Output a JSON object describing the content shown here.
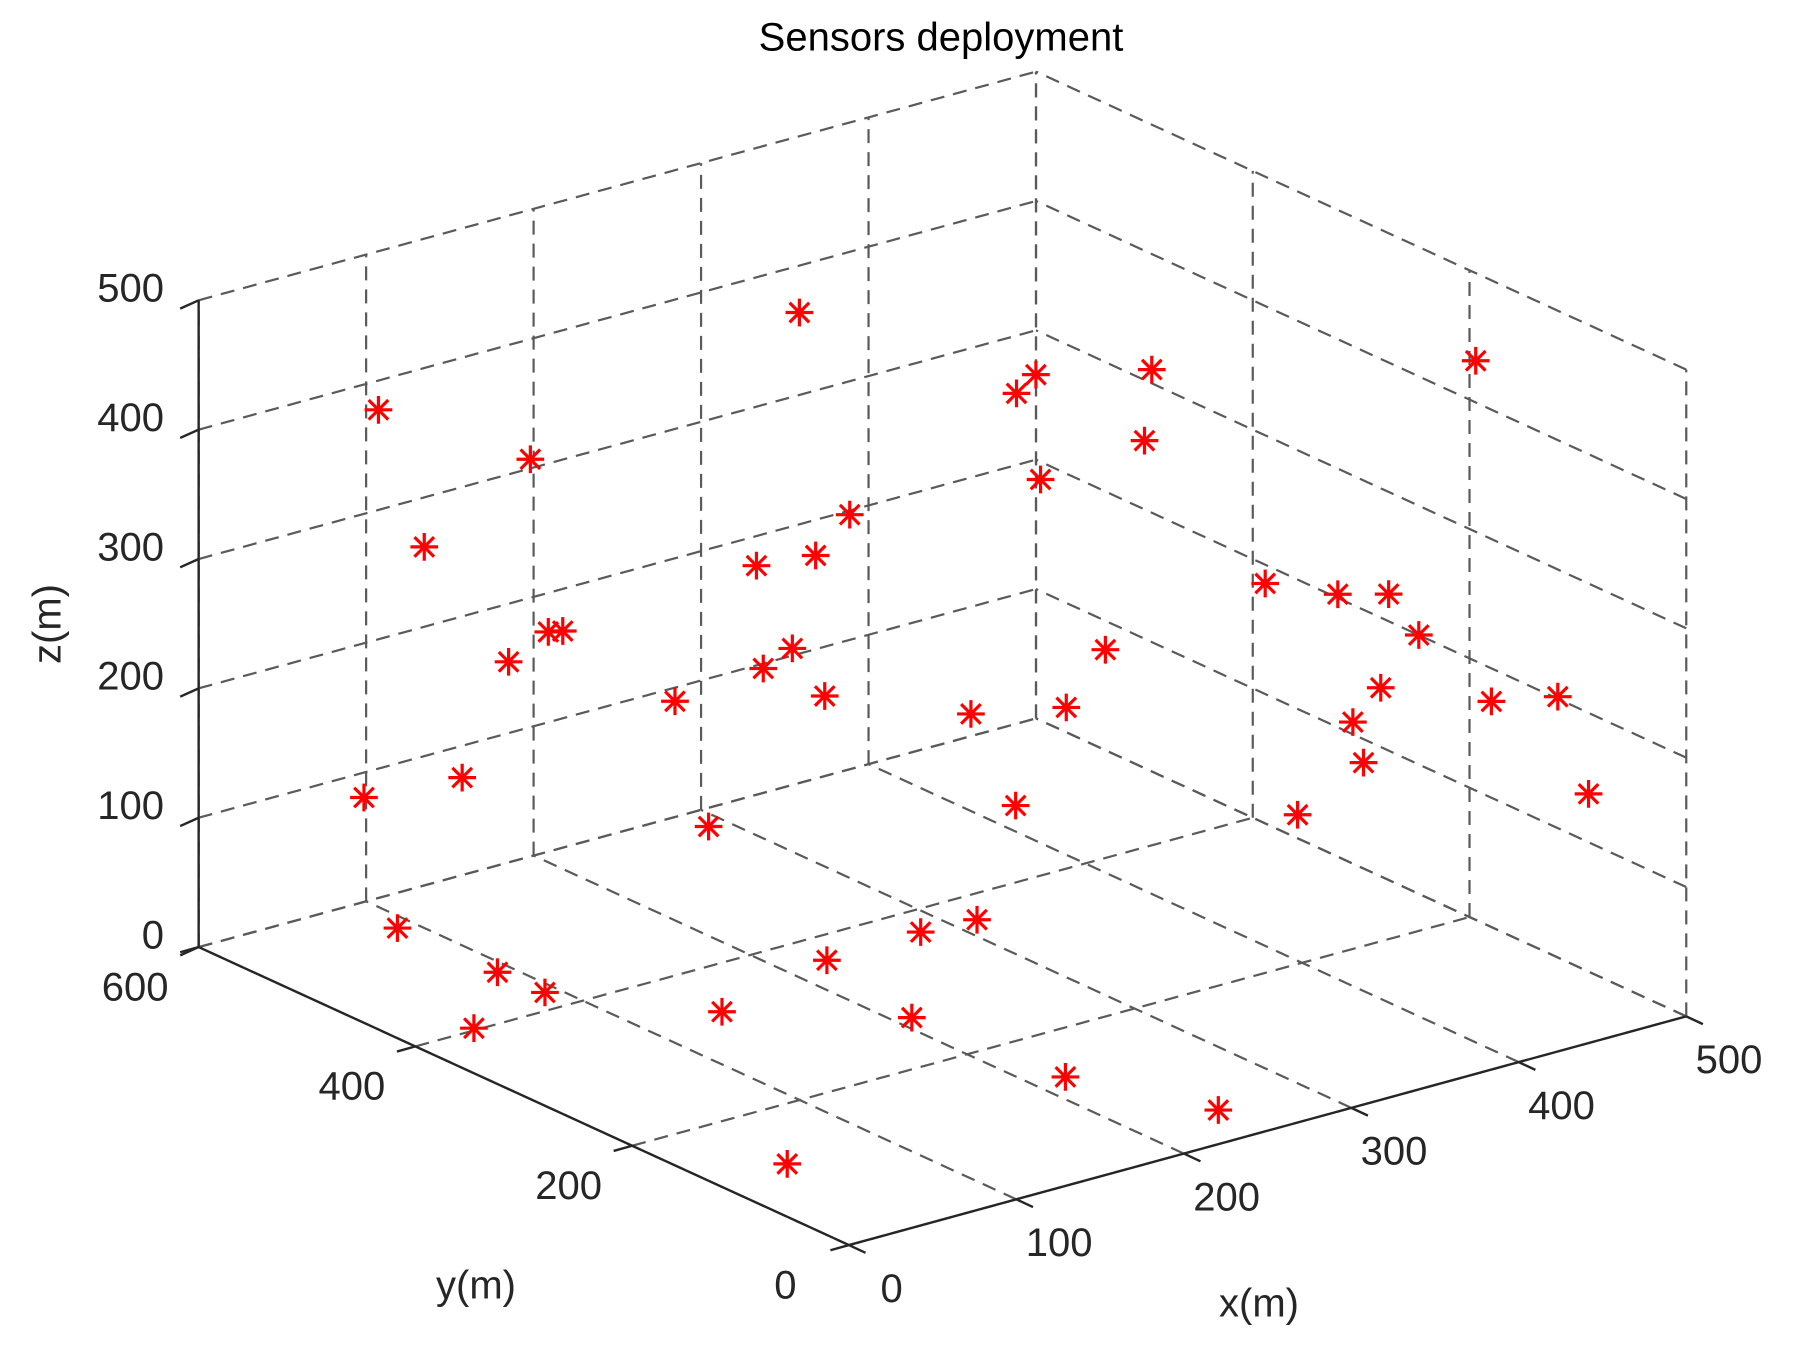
{
  "chart_data": {
    "type": "scatter3d",
    "title": "Sensors deployment",
    "xlabel": "x(m)",
    "ylabel": "y(m)",
    "zlabel": "z(m)",
    "xlim": [
      0,
      500
    ],
    "ylim": [
      0,
      600
    ],
    "zlim": [
      0,
      500
    ],
    "xticks": [
      0,
      100,
      200,
      300,
      400,
      500
    ],
    "yticks": [
      0,
      200,
      400,
      600
    ],
    "zticks": [
      0,
      100,
      200,
      300,
      400,
      500
    ],
    "grid": true,
    "marker": "asterisk",
    "series": [
      {
        "color": "#ff0000",
        "x": [
          294,
          75,
          101,
          70,
          227,
          239,
          236,
          47,
          88,
          88,
          128,
          143,
          155,
          115,
          125,
          34,
          78,
          456,
          487,
          375,
          403,
          438,
          439,
          378,
          389,
          387,
          405,
          412,
          421,
          267,
          447,
          398,
          372,
          416,
          488,
          474,
          229,
          365,
          54,
          49,
          45,
          22,
          86,
          181,
          237,
          303,
          167,
          194,
          240,
          2
        ],
        "y": [
          500,
          550,
          450,
          500,
          350,
          400,
          450,
          350,
          400,
          450,
          250,
          300,
          400,
          200,
          550,
          500,
          250,
          550,
          580,
          300,
          350,
          500,
          100,
          200,
          150,
          100,
          100,
          400,
          450,
          300,
          200,
          150,
          100,
          50,
          100,
          50,
          200,
          150,
          500,
          400,
          350,
          380,
          250,
          300,
          300,
          350,
          200,
          100,
          30,
          60
        ],
        "z": [
          425,
          408,
          399,
          323,
          350,
          295,
          269,
          323,
          290,
          247,
          320,
          280,
          212,
          307,
          106,
          142,
          200,
          286,
          278,
          429,
          345,
          245,
          490,
          301,
          308,
          328,
          290,
          161,
          94,
          201,
          196,
          206,
          203,
          254,
          213,
          162,
          182,
          146,
          34,
          40,
          45,
          14,
          54,
          41,
          43,
          10,
          40,
          23,
          8,
          39
        ]
      }
    ]
  }
}
